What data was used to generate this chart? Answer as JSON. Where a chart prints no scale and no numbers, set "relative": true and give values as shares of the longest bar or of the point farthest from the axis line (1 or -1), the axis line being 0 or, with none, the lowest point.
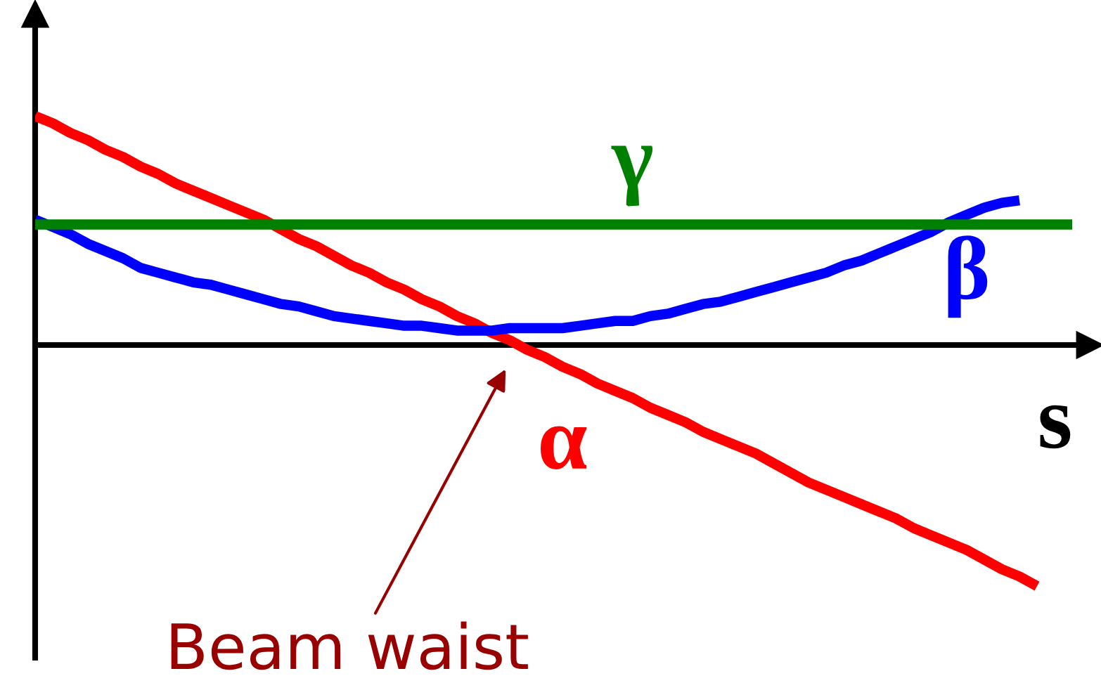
{
  "chart_data": {
    "type": "line",
    "relative": true,
    "xlabel": "s",
    "categories": [
      null,
      null,
      null,
      null,
      null,
      null,
      null,
      null,
      null,
      null,
      null,
      null,
      null,
      null,
      null,
      null,
      null,
      null,
      null,
      null,
      null,
      null,
      null,
      null,
      null,
      null,
      null,
      null,
      null,
      null,
      null,
      null,
      null,
      null,
      null,
      null,
      null,
      null,
      null,
      null,
      null,
      null,
      null,
      null,
      null,
      null,
      null,
      null,
      null,
      null,
      null,
      null,
      null,
      null,
      null,
      null,
      null,
      null,
      null,
      null,
      null
    ],
    "series": [
      {
        "name": "α",
        "color": "#ff0000",
        "values": [
          0.95,
          0.92,
          0.88,
          0.85,
          0.81,
          0.78,
          0.74,
          0.71,
          0.67,
          0.64,
          0.61,
          0.58,
          0.55,
          0.52,
          0.48,
          0.44,
          0.41,
          0.37,
          0.33,
          0.3,
          0.26,
          0.23,
          0.19,
          0.16,
          0.12,
          0.09,
          0.05,
          0.02,
          -0.02,
          -0.05,
          -0.09,
          -0.12,
          -0.16,
          -0.19,
          -0.22,
          -0.26,
          -0.29,
          -0.32,
          -0.36,
          -0.39,
          -0.42,
          -0.45,
          -0.49,
          -0.53,
          -0.57,
          -0.6,
          -0.63,
          -0.66,
          -0.69,
          -0.72,
          -0.76,
          -0.79,
          -0.82,
          -0.85,
          -0.89,
          -0.93,
          -0.96,
          -1,
          null,
          null,
          null
        ]
      },
      {
        "name": "β",
        "color": "#0000ff",
        "values": [
          0.52,
          0.49,
          0.46,
          0.42,
          0.39,
          0.36,
          0.32,
          0.3,
          0.28,
          0.26,
          0.25,
          0.23,
          0.21,
          0.19,
          0.17,
          0.16,
          0.14,
          0.12,
          0.11,
          0.1,
          0.09,
          0.08,
          0.08,
          0.07,
          0.06,
          0.06,
          0.06,
          0.07,
          0.07,
          0.07,
          0.07,
          0.08,
          0.09,
          0.1,
          0.1,
          0.12,
          0.13,
          0.15,
          0.17,
          0.18,
          0.2,
          0.22,
          0.24,
          0.26,
          0.28,
          0.3,
          0.33,
          0.35,
          0.38,
          0.41,
          0.44,
          0.47,
          0.51,
          0.54,
          0.57,
          0.59,
          0.6,
          null,
          null,
          null,
          null
        ]
      },
      {
        "name": "γ",
        "color": "#008000",
        "values": [
          0.5,
          0.5,
          0.5,
          0.5,
          0.5,
          0.5,
          0.5,
          0.5,
          0.5,
          0.5,
          0.5,
          0.5,
          0.5,
          0.5,
          0.5,
          0.5,
          0.5,
          0.5,
          0.5,
          0.5,
          0.5,
          0.5,
          0.5,
          0.5,
          0.5,
          0.5,
          0.5,
          0.5,
          0.5,
          0.5,
          0.5,
          0.5,
          0.5,
          0.5,
          0.5,
          0.5,
          0.5,
          0.5,
          0.5,
          0.5,
          0.5,
          0.5,
          0.5,
          0.5,
          0.5,
          0.5,
          0.5,
          0.5,
          0.5,
          0.5,
          0.5,
          0.5,
          0.5,
          0.5,
          0.5,
          0.5,
          0.5,
          0.5,
          0.5,
          0.5,
          null
        ]
      }
    ],
    "annotations": [
      "Beam waist"
    ]
  }
}
